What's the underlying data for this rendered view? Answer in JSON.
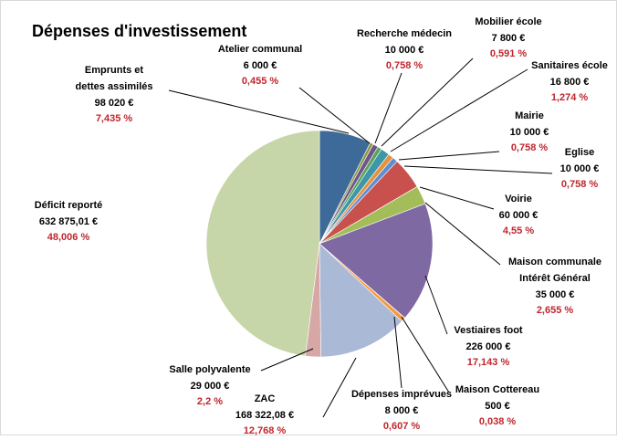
{
  "chart_data": {
    "type": "pie",
    "title": "Dépenses d'investissement",
    "categories": [
      "Emprunts et\ndettes assimilés",
      "Atelier communal",
      "Recherche médecin",
      "Mobilier école",
      "Sanitaires école",
      "Mairie",
      "Eglise",
      "Voirie",
      "Maison communale\nIntérêt Général",
      "Vestiaires foot",
      "Maison Cottereau",
      "Dépenses imprévues",
      "ZAC",
      "Salle polyvalente",
      "Déficit reporté"
    ],
    "values": [
      98020,
      6000,
      10000,
      7800,
      16800,
      10000,
      10000,
      60000,
      35000,
      226000,
      500,
      8000,
      168322.08,
      29000,
      632875.01
    ],
    "value_labels": [
      "98 020 €",
      "6 000 €",
      "10 000 €",
      "7 800 €",
      "16 800 €",
      "10 000 €",
      "10 000 €",
      "60 000 €",
      "35 000 €",
      "226 000 €",
      "500 €",
      "8 000 €",
      "168 322,08 €",
      "29 000 €",
      "632 875,01 €"
    ],
    "percentages": [
      7.435,
      0.455,
      0.758,
      0.591,
      1.274,
      0.758,
      0.758,
      4.55,
      2.655,
      17.143,
      0.038,
      0.607,
      12.768,
      2.2,
      48.006
    ],
    "percentage_labels": [
      "7,435 %",
      "0,455 %",
      "0,758 %",
      "0,591 %",
      "1,274 %",
      "0,758 %",
      "0,758 %",
      "4,55 %",
      "2,655 %",
      "17,143 %",
      "0,038 %",
      "0,607 %",
      "12,768 %",
      "2,2 %",
      "48,006 %"
    ],
    "colors": [
      "#3e6a99",
      "#8a9a43",
      "#6e548d",
      "#5aa35a",
      "#3e96a9",
      "#e8913b",
      "#5b8fd2",
      "#c9514d",
      "#a2bd5a",
      "#7f69a3",
      "#4aa0b5",
      "#f59a3c",
      "#aab9d6",
      "#d7a7a5",
      "#c6d6a8"
    ]
  }
}
